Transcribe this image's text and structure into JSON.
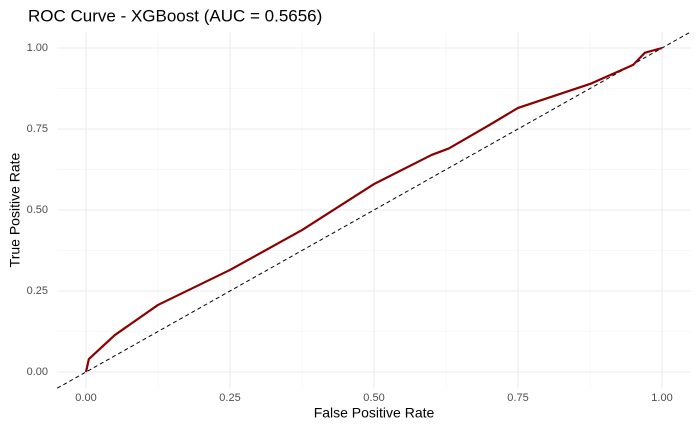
{
  "chart_data": {
    "type": "line",
    "title": "ROC Curve - XGBoost (AUC = 0.5656)",
    "x_label": "False Positive Rate",
    "y_label": "True Positive Rate",
    "x": [
      0,
      0.005,
      0.05,
      0.125,
      0.25,
      0.375,
      0.5,
      0.6,
      0.63,
      0.7,
      0.75,
      0.875,
      0.95,
      0.97,
      1
    ],
    "series": [
      {
        "color": "#8b0000",
        "values": [
          0,
          0.04,
          0.114,
          0.207,
          0.315,
          0.438,
          0.58,
          0.67,
          0.69,
          0.762,
          0.815,
          0.889,
          0.948,
          0.985,
          1
        ]
      }
    ],
    "xlim": [
      -0.05,
      1.05
    ],
    "ylim": [
      -0.05,
      1.05
    ],
    "xticks": [
      {
        "value": 0,
        "label": "0.00"
      },
      {
        "value": 0.25,
        "label": "0.25"
      },
      {
        "value": 0.5,
        "label": "0.50"
      },
      {
        "value": 0.75,
        "label": "0.75"
      },
      {
        "value": 1,
        "label": "1.00"
      }
    ],
    "yticks": [
      {
        "value": 0,
        "label": "0.00"
      },
      {
        "value": 0.25,
        "label": "0.25"
      },
      {
        "value": 0.5,
        "label": "0.50"
      },
      {
        "value": 0.75,
        "label": "0.75"
      },
      {
        "value": 1,
        "label": "1.00"
      }
    ],
    "x_minor_grid": [
      0.125,
      0.375,
      0.625,
      0.875
    ],
    "y_minor_grid": [
      0.125,
      0.375,
      0.625,
      0.875
    ],
    "grid": true,
    "diagonal": true
  }
}
